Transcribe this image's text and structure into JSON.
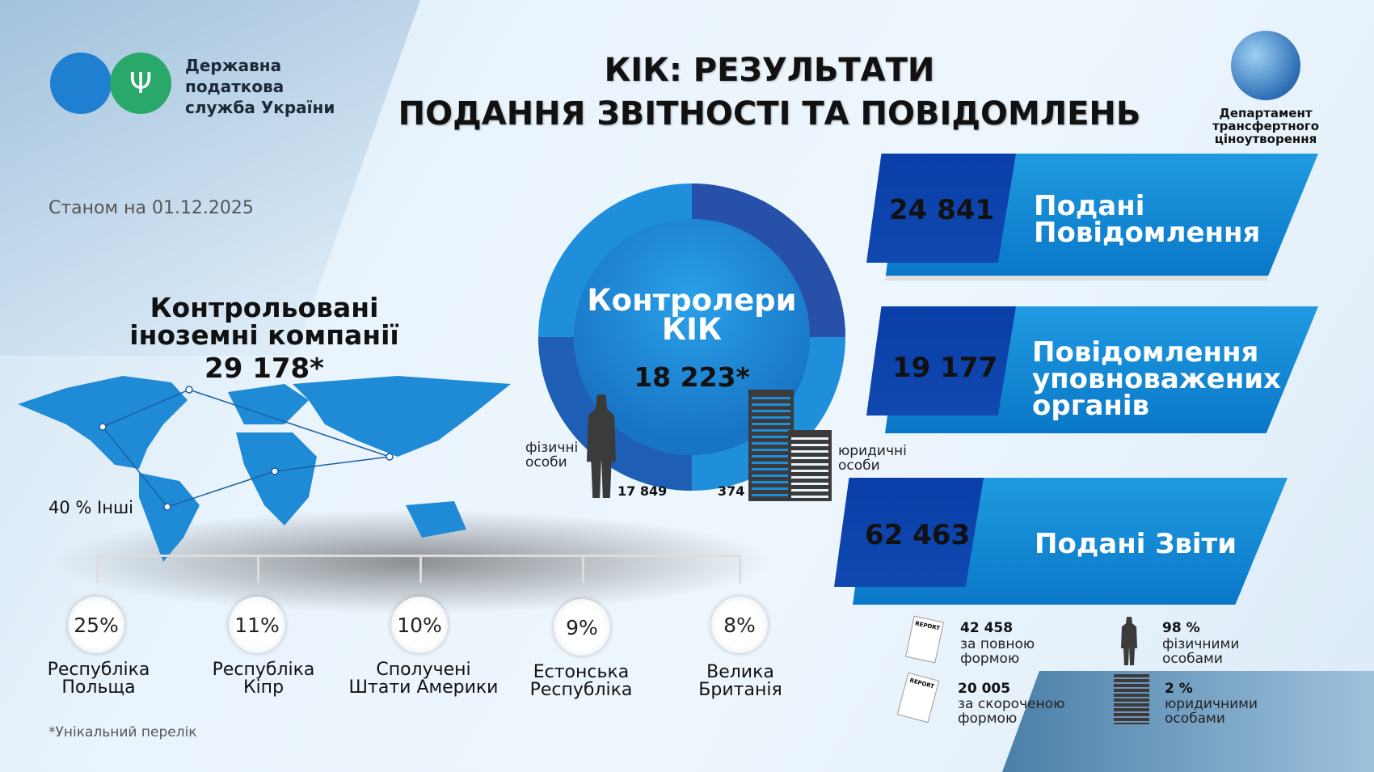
{
  "header": {
    "org_name": [
      "Державна",
      "податкова",
      "служба України"
    ],
    "title_line1": "КІК: РЕЗУЛЬТАТИ",
    "title_line2": "ПОДАННЯ ЗВІТНОСТІ ТА ПОВІДОМЛЕНЬ",
    "department": [
      "Департамент",
      "трансфертного",
      "ціноутворення"
    ]
  },
  "as_of": "Станом на 01.12.2025",
  "cfc": {
    "title_line1": "Контрольовані",
    "title_line2": "іноземні компанії",
    "total": "29 178*",
    "others": "40 % Інші",
    "countries": [
      {
        "percent": "25%",
        "name_line1": "Республіка",
        "name_line2": "Польща"
      },
      {
        "percent": "11%",
        "name_line1": "Республіка",
        "name_line2": "Кіпр"
      },
      {
        "percent": "10%",
        "name_line1": "Сполучені",
        "name_line2": "Штати Америки"
      },
      {
        "percent": "9%",
        "name_line1": "Естонська",
        "name_line2": "Республіка"
      },
      {
        "percent": "8%",
        "name_line1": "Велика",
        "name_line2": "Британія"
      }
    ]
  },
  "controllers": {
    "title_line1": "Контролери",
    "title_line2": "КІК",
    "total": "18 223*",
    "individuals_label": [
      "фізичні",
      "особи"
    ],
    "individuals_value": "17 849",
    "legal_label": [
      "юридичні",
      "особи"
    ],
    "legal_value": "374"
  },
  "chart_data": {
    "type": "pie",
    "title": "Контролери КІК",
    "categories": [
      "фізичні особи",
      "юридичні особи"
    ],
    "values": [
      17849,
      374
    ],
    "total": 18223
  },
  "stats": [
    {
      "value": "24 841",
      "label_lines": [
        "Подані",
        "Повідомлення"
      ]
    },
    {
      "value": "19 177",
      "label_lines": [
        "Повідомлення",
        "уповноважених",
        "органів"
      ]
    },
    {
      "value": "62 463",
      "label_lines": [
        "Подані Звіти"
      ]
    }
  ],
  "reports_breakdown": [
    {
      "value": "42 458",
      "label_lines": [
        "за повною",
        "формою"
      ],
      "icon": "report-icon"
    },
    {
      "value": "20 005",
      "label_lines": [
        "за скороченою",
        "формою"
      ],
      "icon": "report-icon"
    }
  ],
  "submitters_breakdown": [
    {
      "value": "98 %",
      "label_lines": [
        "фізичними",
        "особами"
      ],
      "icon": "person-icon"
    },
    {
      "value": "2 %",
      "label_lines": [
        "юридичними",
        "особами"
      ],
      "icon": "building-icon"
    }
  ],
  "footnote": "*Унікальний перелік",
  "colors": {
    "dark_blue": "#0a3ea8",
    "mid_blue": "#1a7fd0",
    "light_blue": "#1f9ae0",
    "green": "#2aa86a",
    "logo_blue": "#1f7fd0"
  }
}
